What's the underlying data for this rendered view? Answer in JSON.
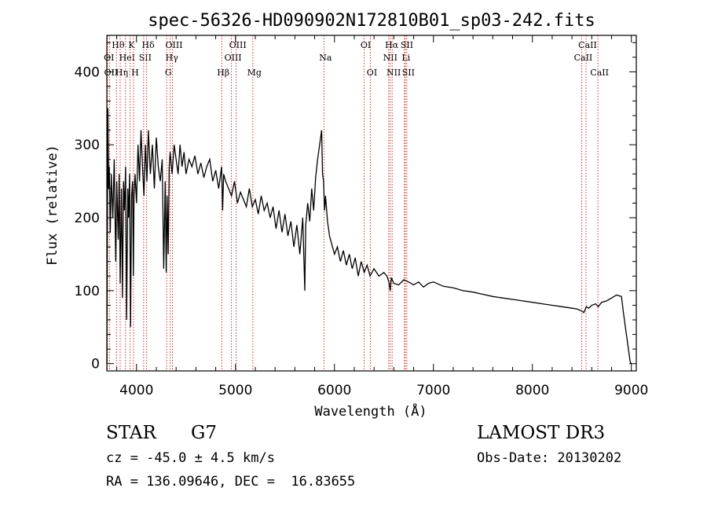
{
  "chart_data": {
    "type": "line",
    "title": "spec-56326-HD090902N172810B01_sp03-242.fits",
    "xlabel": "Wavelength (Å)",
    "ylabel": "Flux (relative)",
    "xlim": [
      3700,
      9050
    ],
    "ylim": [
      -10,
      450
    ],
    "xticks": [
      4000,
      5000,
      6000,
      7000,
      8000,
      9000
    ],
    "yticks": [
      0,
      100,
      200,
      300,
      400
    ],
    "grid": false,
    "line_color": "#000000",
    "marker_color": "#cc3333",
    "series": [
      {
        "name": "flux",
        "x": [
          3700,
          3710,
          3718,
          3725,
          3735,
          3745,
          3760,
          3775,
          3790,
          3800,
          3815,
          3825,
          3835,
          3848,
          3858,
          3868,
          3878,
          3890,
          3900,
          3912,
          3920,
          3930,
          3940,
          3950,
          3960,
          3968,
          3975,
          3985,
          4000,
          4015,
          4030,
          4045,
          4060,
          4075,
          4090,
          4105,
          4120,
          4140,
          4160,
          4180,
          4200,
          4220,
          4240,
          4260,
          4275,
          4290,
          4300,
          4310,
          4320,
          4330,
          4340,
          4360,
          4380,
          4400,
          4420,
          4440,
          4460,
          4480,
          4500,
          4530,
          4560,
          4590,
          4620,
          4650,
          4680,
          4710,
          4740,
          4770,
          4800,
          4830,
          4860,
          4870,
          4880,
          4900,
          4930,
          4960,
          4990,
          5020,
          5050,
          5080,
          5110,
          5140,
          5170,
          5200,
          5230,
          5260,
          5290,
          5320,
          5350,
          5380,
          5410,
          5440,
          5470,
          5500,
          5530,
          5560,
          5590,
          5620,
          5650,
          5680,
          5700,
          5710,
          5730,
          5750,
          5770,
          5790,
          5810,
          5830,
          5850,
          5870,
          5880,
          5890,
          5900,
          5910,
          5930,
          5950,
          5970,
          6000,
          6030,
          6060,
          6090,
          6120,
          6150,
          6180,
          6210,
          6240,
          6270,
          6300,
          6330,
          6360,
          6400,
          6450,
          6500,
          6530,
          6550,
          6563,
          6575,
          6600,
          6650,
          6700,
          6750,
          6800,
          6850,
          6900,
          6950,
          7000,
          7100,
          7200,
          7300,
          7400,
          7500,
          7600,
          7700,
          7800,
          7900,
          8000,
          8100,
          8200,
          8300,
          8400,
          8450,
          8500,
          8520,
          8545,
          8570,
          8600,
          8640,
          8665,
          8700,
          8750,
          8800,
          8850,
          8900,
          8920,
          8940,
          8960,
          8980,
          8990,
          9000
        ],
        "y": [
          0,
          350,
          240,
          270,
          180,
          260,
          200,
          280,
          140,
          250,
          170,
          260,
          110,
          240,
          90,
          250,
          210,
          270,
          60,
          240,
          200,
          260,
          50,
          230,
          250,
          120,
          230,
          260,
          220,
          300,
          250,
          320,
          270,
          230,
          300,
          250,
          320,
          260,
          300,
          240,
          310,
          270,
          250,
          280,
          130,
          250,
          125,
          230,
          150,
          270,
          290,
          260,
          300,
          280,
          260,
          300,
          270,
          290,
          260,
          280,
          270,
          285,
          260,
          275,
          255,
          270,
          280,
          250,
          265,
          240,
          270,
          210,
          260,
          250,
          240,
          230,
          250,
          220,
          235,
          225,
          215,
          240,
          215,
          225,
          205,
          230,
          210,
          220,
          200,
          215,
          185,
          210,
          180,
          205,
          175,
          195,
          160,
          190,
          150,
          200,
          100,
          190,
          220,
          195,
          240,
          210,
          255,
          280,
          300,
          320,
          260,
          250,
          210,
          230,
          195,
          175,
          165,
          150,
          160,
          140,
          155,
          135,
          150,
          130,
          145,
          120,
          140,
          125,
          135,
          120,
          130,
          120,
          125,
          120,
          112,
          100,
          118,
          110,
          108,
          115,
          112,
          108,
          112,
          105,
          110,
          112,
          106,
          104,
          100,
          98,
          95,
          92,
          90,
          88,
          86,
          84,
          82,
          80,
          78,
          76,
          75,
          72,
          70,
          78,
          76,
          80,
          82,
          78,
          84,
          86,
          90,
          94,
          92,
          70,
          50,
          30,
          10,
          2,
          0
        ]
      }
    ],
    "lines": [
      {
        "label": "OI",
        "x": 3706,
        "row": 2
      },
      {
        "label": "OII",
        "x": 3727,
        "row": 3
      },
      {
        "label": "Hθ",
        "x": 3798,
        "row": 1
      },
      {
        "label": "Hη",
        "x": 3835,
        "row": 3
      },
      {
        "label": "HeI",
        "x": 3889,
        "row": 2
      },
      {
        "label": "K",
        "x": 3934,
        "row": 1
      },
      {
        "label": "H",
        "x": 3969,
        "row": 3
      },
      {
        "label": "SII",
        "x": 4072,
        "row": 2
      },
      {
        "label": "Hδ",
        "x": 4102,
        "row": 1
      },
      {
        "label": "G",
        "x": 4305,
        "row": 3
      },
      {
        "label": "Hγ",
        "x": 4341,
        "row": 2
      },
      {
        "label": "OIII",
        "x": 4363,
        "row": 1
      },
      {
        "label": "Hβ",
        "x": 4861,
        "row": 3
      },
      {
        "label": "OIII",
        "x": 4959,
        "row": 2
      },
      {
        "label": "OIII",
        "x": 5007,
        "row": 1
      },
      {
        "label": "Mg",
        "x": 5175,
        "row": 3
      },
      {
        "label": "Na",
        "x": 5894,
        "row": 2
      },
      {
        "label": "OI",
        "x": 6300,
        "row": 1
      },
      {
        "label": "OI",
        "x": 6363,
        "row": 3
      },
      {
        "label": "NII",
        "x": 6548,
        "row": 2
      },
      {
        "label": "Hα",
        "x": 6563,
        "row": 1
      },
      {
        "label": "NII",
        "x": 6583,
        "row": 3
      },
      {
        "label": "Li",
        "x": 6707,
        "row": 2
      },
      {
        "label": "SII",
        "x": 6716,
        "row": 1
      },
      {
        "label": "SII",
        "x": 6731,
        "row": 3
      },
      {
        "label": "CaII",
        "x": 8498,
        "row": 2
      },
      {
        "label": "CaII",
        "x": 8542,
        "row": 1
      },
      {
        "label": "CaII",
        "x": 8662,
        "row": 3
      }
    ]
  },
  "info": {
    "class_label": "STAR",
    "subclass": "G7",
    "survey": "LAMOST DR3",
    "redshift": "cz = -45.0 ± 4.5 km/s",
    "obs_date": "Obs-Date: 20130202",
    "coords": "RA = 136.09646, DEC =  16.83655"
  }
}
